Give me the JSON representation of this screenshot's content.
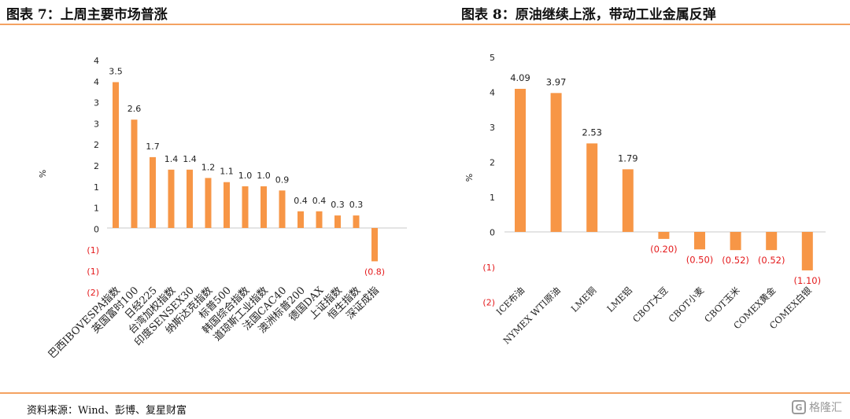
{
  "titles": {
    "left": "图表 7：上周主要市场普涨",
    "right": "图表 8：原油继续上涨，带动工业金属反弹"
  },
  "source": "资料来源：Wind、彭博、复星财富",
  "watermark": {
    "text": "格隆汇",
    "icon": "G"
  },
  "colors": {
    "bar": "#f79646",
    "negative_label": "#e41a1c",
    "axis": "#c8c8c8"
  },
  "chart_data": [
    {
      "type": "bar",
      "categories": [
        "巴西IBOVESPA指数",
        "英国富时100",
        "日经225",
        "台湾加权指数",
        "印度SENSEX30",
        "纳斯达克指数",
        "标普500",
        "韩国综合指数",
        "道琼斯工业指数",
        "法国CAC40",
        "澳洲标普200",
        "德国DAX",
        "上证指数",
        "恒生指数",
        "深证成指"
      ],
      "values": [
        3.5,
        2.6,
        1.7,
        1.4,
        1.4,
        1.2,
        1.1,
        1.0,
        1.0,
        0.9,
        0.4,
        0.4,
        0.3,
        0.3,
        -0.8
      ],
      "value_labels": [
        "3.5",
        "2.6",
        "1.7",
        "1.4",
        "1.4",
        "1.2",
        "1.1",
        "1.0",
        "1.0",
        "0.9",
        "0.4",
        "0.4",
        "0.3",
        "0.3",
        "(0.8)"
      ],
      "ylabel": "%",
      "yticks": [
        "4",
        "4",
        "3",
        "3",
        "2",
        "2",
        "1",
        "1",
        "0",
        "(1)",
        "(1)",
        "(2)"
      ],
      "ylim": [
        -1.5,
        4.0
      ]
    },
    {
      "type": "bar",
      "categories": [
        "ICE布油",
        "NYMEX WTI原油",
        "LME铜",
        "LME铝",
        "CBOT大豆",
        "CBOT小麦",
        "CBOT玉米",
        "COMEX黄金",
        "COMEX白银"
      ],
      "values": [
        4.09,
        3.97,
        2.53,
        1.79,
        -0.2,
        -0.5,
        -0.52,
        -0.52,
        -1.1
      ],
      "value_labels": [
        "4.09",
        "3.97",
        "2.53",
        "1.79",
        "(0.20)",
        "(0.50)",
        "(0.52)",
        "(0.52)",
        "(1.10)"
      ],
      "ylabel": "%",
      "yticks": [
        "5",
        "4",
        "3",
        "2",
        "1",
        "0",
        "(1)",
        "(2)"
      ],
      "ylim": [
        -2,
        5
      ]
    }
  ]
}
